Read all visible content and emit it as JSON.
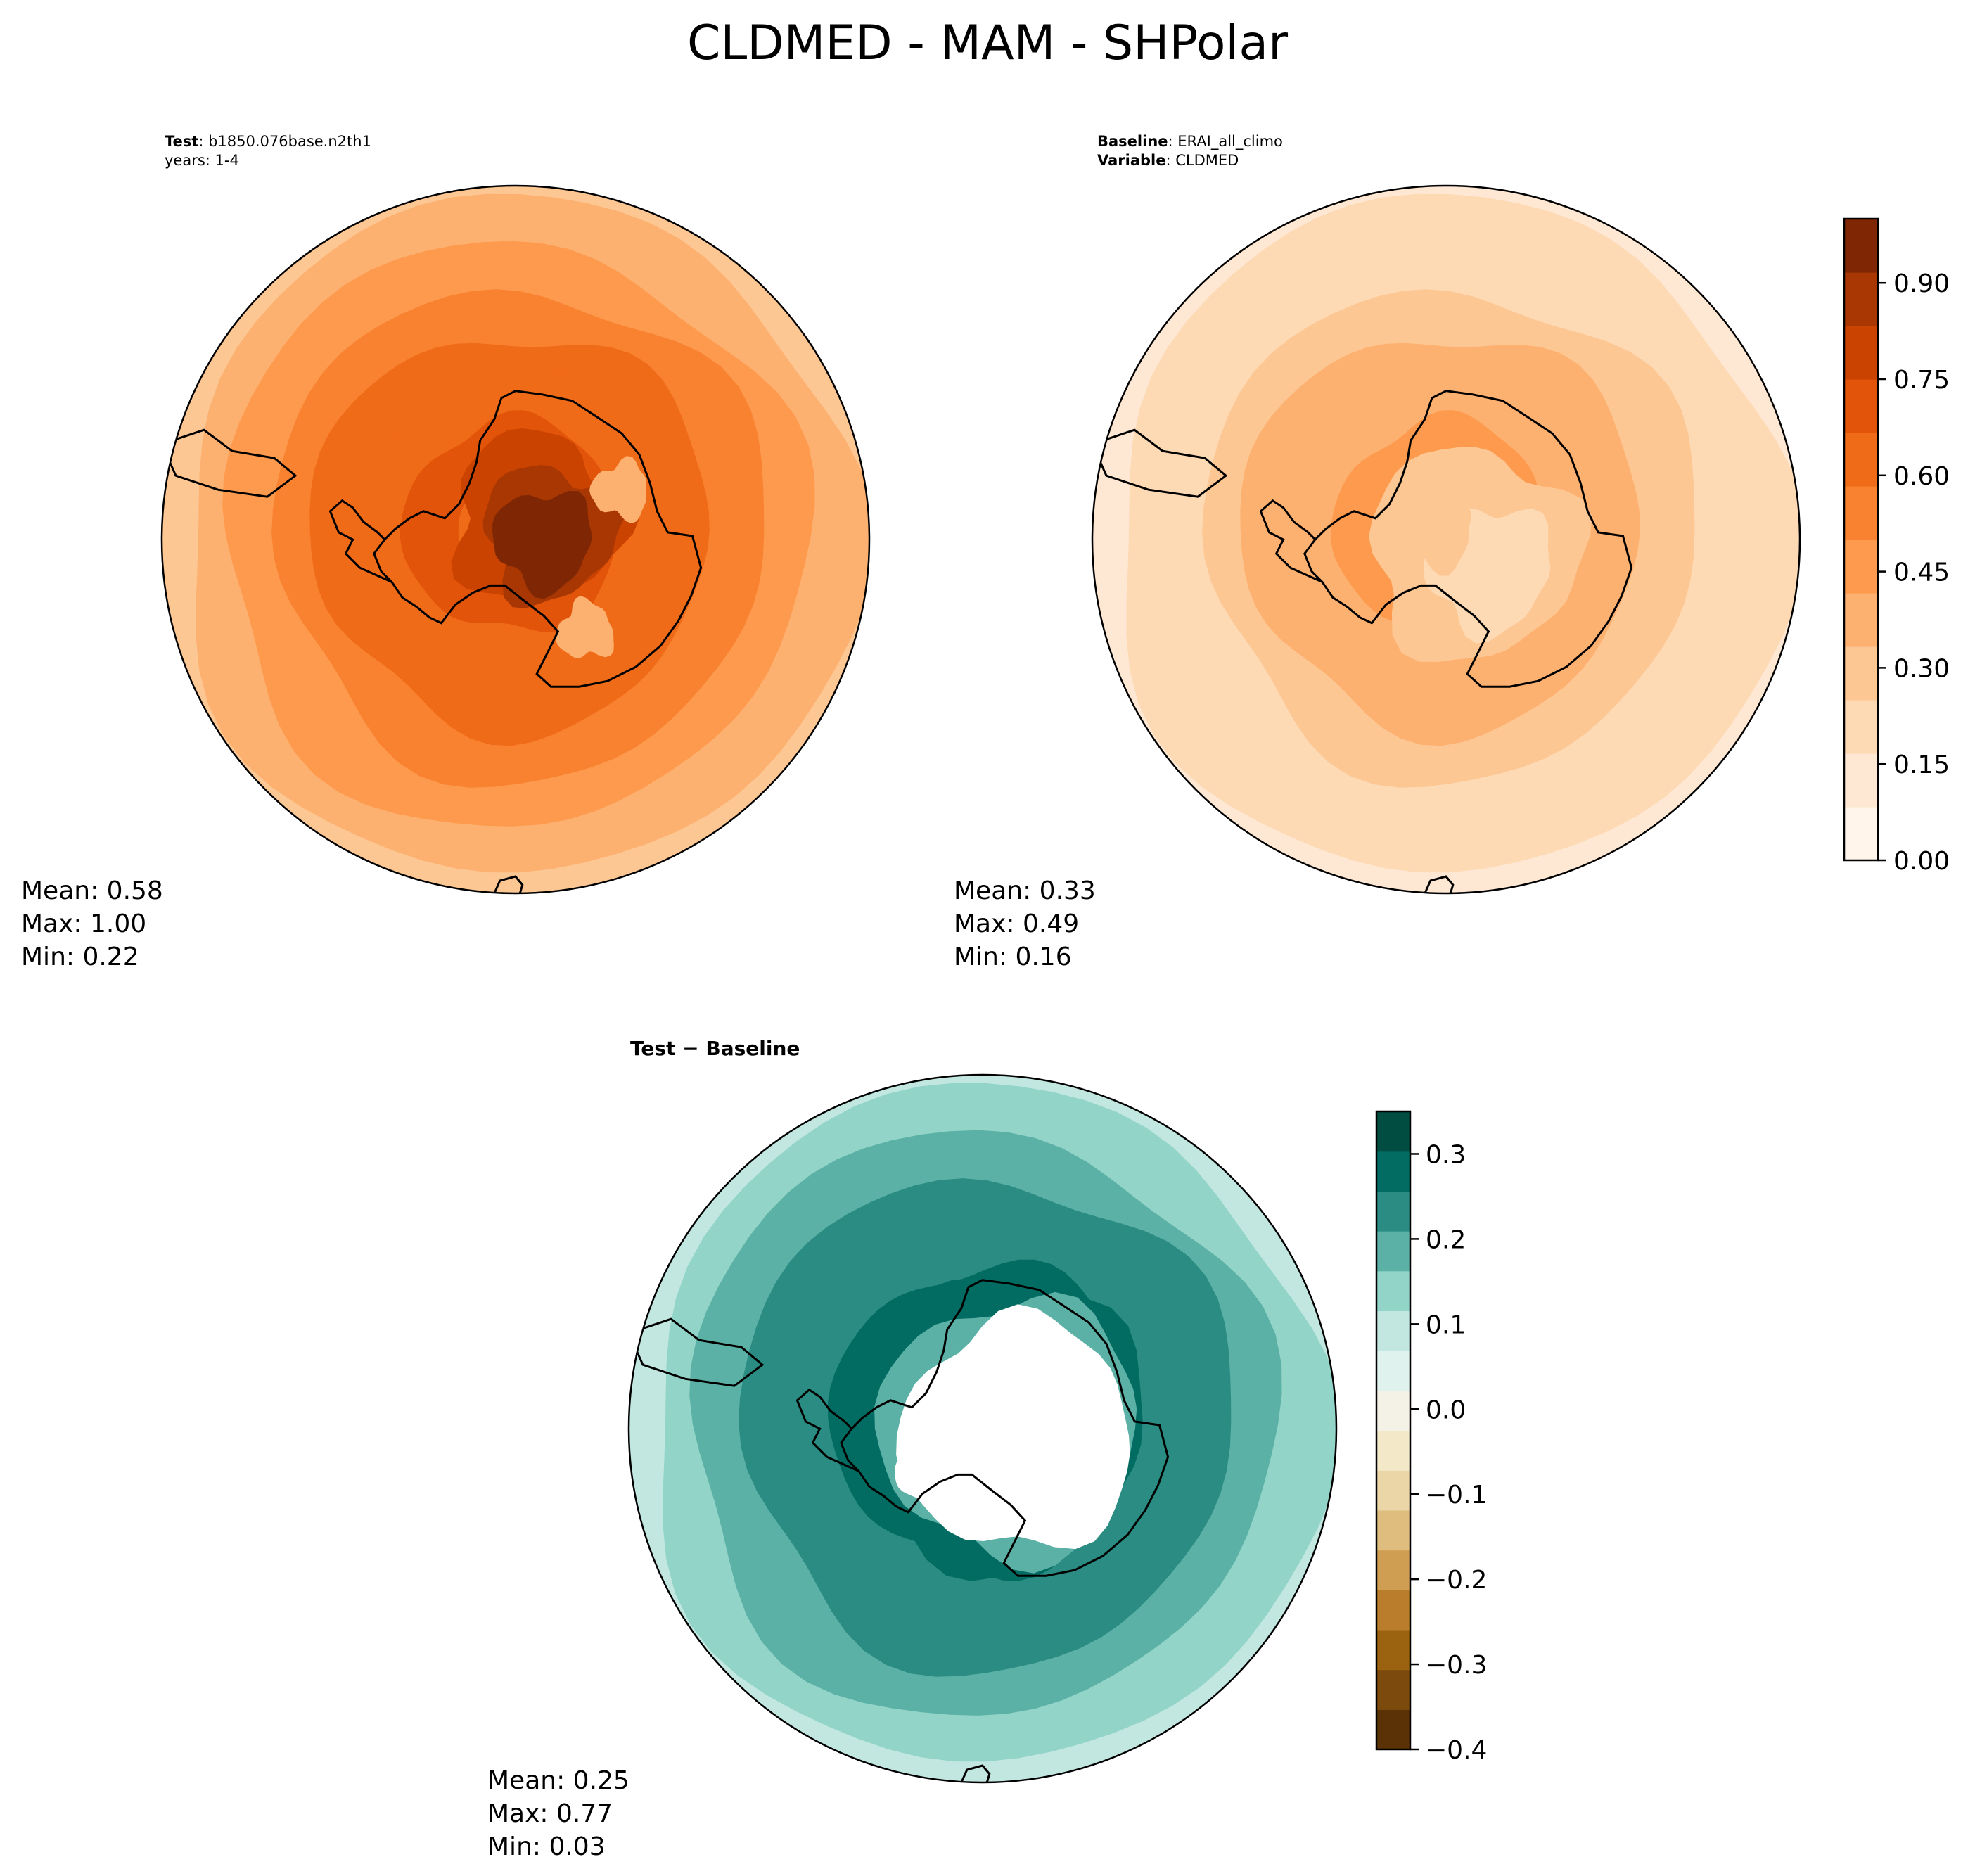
{
  "figure": {
    "title": "CLDMED - MAM - SHPolar"
  },
  "panels": {
    "test": {
      "label_bold": "Test",
      "label_sep": ": ",
      "label_value": "b1850.076base.n2th1",
      "subline": "years: 1-4",
      "stats": {
        "mean": "Mean:  0.58",
        "max": "Max:  1.00",
        "min": "Min:  0.22"
      }
    },
    "baseline": {
      "label_bold": "Baseline",
      "label_sep": ": ",
      "label_value": "ERAI_all_climo",
      "variable_bold": "Variable",
      "variable_sep": ": ",
      "variable_value": "CLDMED",
      "stats": {
        "mean": "Mean:  0.33",
        "max": "Max:  0.49",
        "min": "Min:  0.16"
      }
    },
    "diff": {
      "title": "Test − Baseline",
      "stats": {
        "mean": "Mean:  0.25",
        "max": "Max:  0.77",
        "min": "Min:  0.03"
      }
    }
  },
  "chart_data": [
    {
      "type": "heatmap",
      "name": "Test",
      "projection": "south-polar-stereographic",
      "mean": 0.58,
      "max": 1.0,
      "min": 0.22,
      "colormap": "Oranges",
      "levels_range": [
        0.0,
        1.0
      ]
    },
    {
      "type": "heatmap",
      "name": "Baseline",
      "projection": "south-polar-stereographic",
      "mean": 0.33,
      "max": 0.49,
      "min": 0.16,
      "colormap": "Oranges",
      "colorbar": {
        "range": [
          0.0,
          1.0
        ],
        "ticks": [
          0.0,
          0.15,
          0.3,
          0.45,
          0.6,
          0.75,
          0.9
        ],
        "tick_labels": [
          "0.00",
          "0.15",
          "0.30",
          "0.45",
          "0.60",
          "0.75",
          "0.90"
        ],
        "colors": [
          "#fff5eb",
          "#fee8d3",
          "#fdd9b4",
          "#fdc794",
          "#fdb170",
          "#fd9a4e",
          "#f98230",
          "#f06b18",
          "#e2540a",
          "#cb4301",
          "#a83703",
          "#7f2704"
        ]
      }
    },
    {
      "type": "heatmap",
      "name": "Test − Baseline",
      "projection": "south-polar-stereographic",
      "mean": 0.25,
      "max": 0.77,
      "min": 0.03,
      "colormap": "BrBG",
      "colorbar": {
        "range": [
          -0.4,
          0.35
        ],
        "ticks": [
          -0.4,
          -0.3,
          -0.2,
          -0.1,
          0.0,
          0.1,
          0.2,
          0.3
        ],
        "tick_labels": [
          "−0.4",
          "−0.3",
          "−0.2",
          "−0.1",
          "0.0",
          "0.1",
          "0.2",
          "0.3"
        ],
        "colors": [
          "#5a3206",
          "#7c4a0c",
          "#9b620f",
          "#b97d2b",
          "#cf9e52",
          "#dfbd7f",
          "#ebd6a7",
          "#f3e9c9",
          "#f4f1e6",
          "#e0f2ee",
          "#c2e7e1",
          "#93d4c8",
          "#5cb1a6",
          "#2a8c82",
          "#036c62",
          "#014d41"
        ]
      }
    }
  ]
}
